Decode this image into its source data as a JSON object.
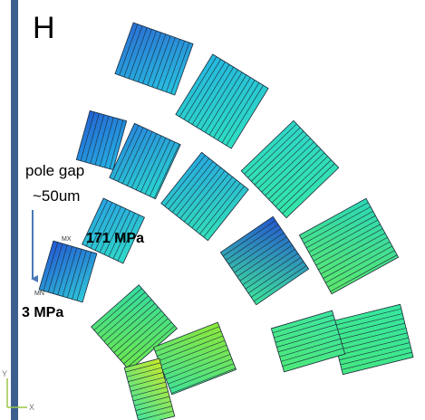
{
  "labels": {
    "panel": "H",
    "pole_gap": "pole gap",
    "gap_size": "~50um",
    "max_stress": "171 MPa",
    "min_stress": "3 MPa",
    "max_marker": "MX",
    "min_marker": "MN",
    "axis_x": "X",
    "axis_y": "Y"
  }
}
